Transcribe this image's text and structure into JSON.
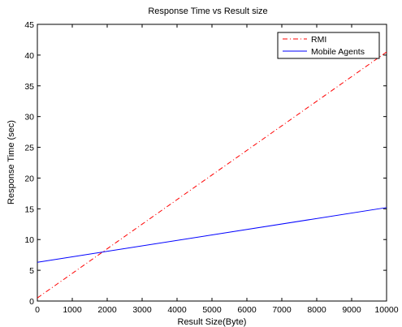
{
  "chart_data": {
    "type": "line",
    "title": "Response Time vs Result size",
    "xlabel": "Result Size(Byte)",
    "ylabel": "Response Time (sec)",
    "xlim": [
      0,
      10000
    ],
    "ylim": [
      0,
      45
    ],
    "xticks": [
      "0",
      "1000",
      "2000",
      "3000",
      "4000",
      "5000",
      "6000",
      "7000",
      "8000",
      "9000",
      "10000"
    ],
    "yticks": [
      "0",
      "5",
      "10",
      "15",
      "20",
      "25",
      "30",
      "35",
      "40",
      "45"
    ],
    "grid": false,
    "legend_position": "top-right",
    "series": [
      {
        "name": "RMI",
        "color": "#ff0000",
        "line_style": "dash-dot",
        "x": [
          0,
          10000
        ],
        "y": [
          0.5,
          40.5
        ]
      },
      {
        "name": "Mobile Agents",
        "color": "#0000ff",
        "line_style": "solid",
        "x": [
          0,
          10000
        ],
        "y": [
          6.3,
          15.2
        ]
      }
    ]
  }
}
